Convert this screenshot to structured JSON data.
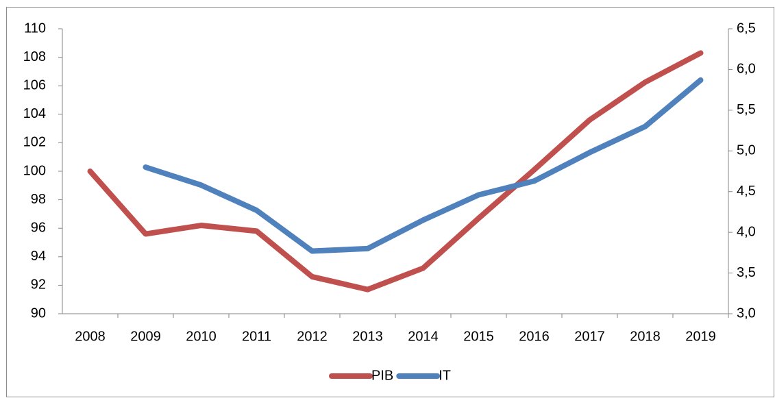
{
  "chart_data": {
    "type": "line",
    "categories": [
      "2008",
      "2009",
      "2010",
      "2011",
      "2012",
      "2013",
      "2014",
      "2015",
      "2016",
      "2017",
      "2018",
      "2019"
    ],
    "series": [
      {
        "name": "PIB",
        "color": "#c0504d",
        "values": [
          100.0,
          95.6,
          96.2,
          95.8,
          92.6,
          91.7,
          93.2,
          96.7,
          100.1,
          103.6,
          106.25,
          108.3
        ]
      },
      {
        "name": "IT",
        "color": "#4f81bd",
        "axis": "y2",
        "values": [
          null,
          4.8,
          4.58,
          4.27,
          3.77,
          3.8,
          4.15,
          4.46,
          4.63,
          4.98,
          5.3,
          5.87
        ]
      }
    ],
    "ylim": [
      90,
      110
    ],
    "yticks": [
      90,
      92,
      94,
      96,
      98,
      100,
      102,
      104,
      106,
      108,
      110
    ],
    "y2lim": [
      3.0,
      6.5
    ],
    "y2ticks": [
      {
        "value": 3.0,
        "label": "3,0"
      },
      {
        "value": 3.5,
        "label": "3,5"
      },
      {
        "value": 4.0,
        "label": "4,0"
      },
      {
        "value": 4.5,
        "label": "4,5"
      },
      {
        "value": 5.0,
        "label": "5,0"
      },
      {
        "value": 5.5,
        "label": "5,5"
      },
      {
        "value": 6.0,
        "label": "6,0"
      },
      {
        "value": 6.5,
        "label": "6,5"
      }
    ],
    "legend": "bottom"
  }
}
